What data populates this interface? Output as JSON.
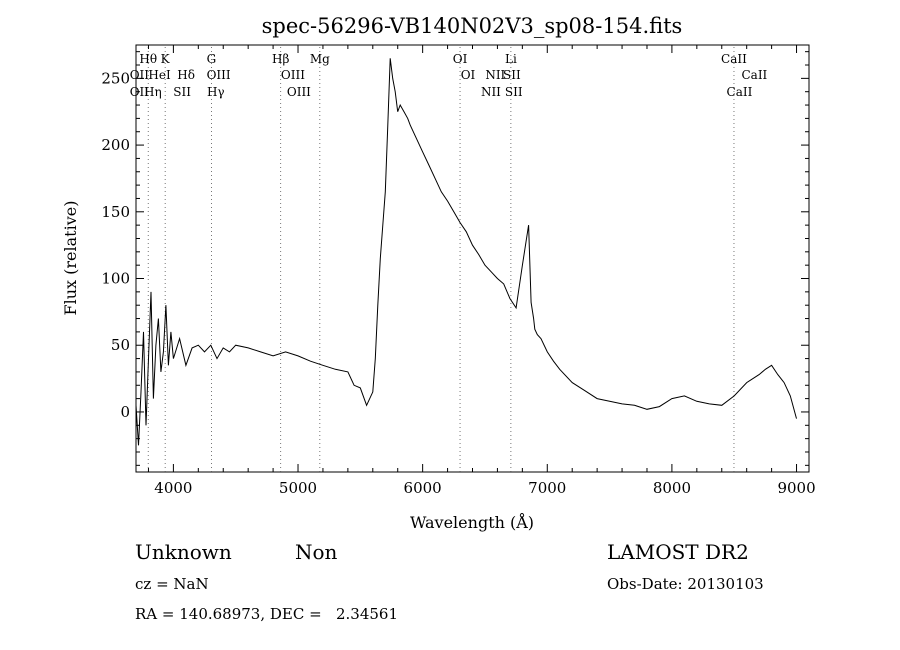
{
  "chart_data": {
    "type": "line",
    "title": "spec-56296-VB140N02V3_sp08-154.fits",
    "xlabel": "Wavelength (Å)",
    "ylabel": "Flux (relative)",
    "xlim": [
      3700,
      9100
    ],
    "ylim": [
      -45,
      275
    ],
    "xticks": [
      4000,
      5000,
      6000,
      7000,
      8000,
      9000
    ],
    "yticks": [
      0,
      50,
      100,
      150,
      200,
      250
    ],
    "grid": false,
    "series": [
      {
        "x": [
          3700,
          3720,
          3740,
          3760,
          3780,
          3800,
          3820,
          3840,
          3860,
          3880,
          3900,
          3920,
          3940,
          3960,
          3980,
          4000,
          4050,
          4100,
          4150,
          4200,
          4250,
          4300,
          4350,
          4400,
          4450,
          4500,
          4600,
          4700,
          4800,
          4900,
          5000,
          5100,
          5200,
          5300,
          5400,
          5450,
          5500,
          5550,
          5600,
          5620,
          5640,
          5660,
          5680,
          5700,
          5720,
          5740,
          5760,
          5780,
          5800,
          5820,
          5850,
          5880,
          5900,
          5950,
          6000,
          6050,
          6100,
          6150,
          6200,
          6250,
          6300,
          6350,
          6400,
          6450,
          6500,
          6550,
          6600,
          6650,
          6700,
          6750,
          6800,
          6850,
          6870,
          6890,
          6900,
          6920,
          6950,
          7000,
          7050,
          7100,
          7200,
          7300,
          7400,
          7500,
          7600,
          7700,
          7800,
          7900,
          8000,
          8100,
          8200,
          8300,
          8400,
          8500,
          8600,
          8700,
          8750,
          8800,
          8850,
          8900,
          8950,
          9000
        ],
        "y": [
          5,
          -25,
          15,
          60,
          -10,
          40,
          90,
          10,
          50,
          70,
          30,
          45,
          80,
          35,
          60,
          40,
          55,
          35,
          48,
          50,
          45,
          50,
          40,
          48,
          45,
          50,
          48,
          45,
          42,
          45,
          42,
          38,
          35,
          32,
          30,
          20,
          18,
          5,
          15,
          40,
          80,
          115,
          140,
          165,
          215,
          265,
          250,
          240,
          225,
          230,
          225,
          220,
          215,
          205,
          195,
          185,
          175,
          165,
          158,
          150,
          142,
          135,
          125,
          118,
          110,
          105,
          100,
          96,
          85,
          78,
          110,
          140,
          82,
          70,
          62,
          58,
          55,
          45,
          38,
          32,
          22,
          16,
          10,
          8,
          6,
          5,
          2,
          4,
          10,
          12,
          8,
          6,
          5,
          12,
          22,
          28,
          32,
          35,
          28,
          22,
          12,
          -5
        ]
      }
    ],
    "line_markers": [
      {
        "label": "Hθ",
        "x": 3798,
        "row": 1
      },
      {
        "label": "K",
        "x": 3934,
        "row": 1
      },
      {
        "label": "G",
        "x": 4305,
        "row": 1
      },
      {
        "label": "Hβ",
        "x": 4861,
        "row": 1
      },
      {
        "label": "Mg",
        "x": 5175,
        "row": 1
      },
      {
        "label": "OI",
        "x": 6300,
        "row": 1
      },
      {
        "label": "Li",
        "x": 6708,
        "row": 1
      },
      {
        "label": "CaII",
        "x": 8498,
        "row": 1
      },
      {
        "label": "OII",
        "x": 3727,
        "row": 2
      },
      {
        "label": "HeI",
        "x": 3889,
        "row": 2
      },
      {
        "label": "Hδ",
        "x": 4102,
        "row": 2
      },
      {
        "label": "OIII",
        "x": 4363,
        "row": 2
      },
      {
        "label": "OIII",
        "x": 4959,
        "row": 2
      },
      {
        "label": "OI",
        "x": 6364,
        "row": 2
      },
      {
        "label": "NII",
        "x": 6583,
        "row": 2
      },
      {
        "label": "SII",
        "x": 6716,
        "row": 2
      },
      {
        "label": "CaII",
        "x": 8662,
        "row": 2
      },
      {
        "label": "OII",
        "x": 3727,
        "row": 3
      },
      {
        "label": "Hη",
        "x": 3835,
        "row": 3
      },
      {
        "label": "SII",
        "x": 4070,
        "row": 3
      },
      {
        "label": "Hγ",
        "x": 4340,
        "row": 3
      },
      {
        "label": "OIII",
        "x": 5007,
        "row": 3
      },
      {
        "label": "NII",
        "x": 6548,
        "row": 3
      },
      {
        "label": "SII",
        "x": 6731,
        "row": 3
      },
      {
        "label": "CaII",
        "x": 8542,
        "row": 3
      }
    ]
  },
  "info": {
    "class": "Unknown",
    "subclass": "Non",
    "survey": "LAMOST DR2",
    "redshift": "cz = NaN",
    "obs_date": "Obs-Date: 20130103",
    "coords": "RA = 140.68973, DEC =   2.34561"
  }
}
